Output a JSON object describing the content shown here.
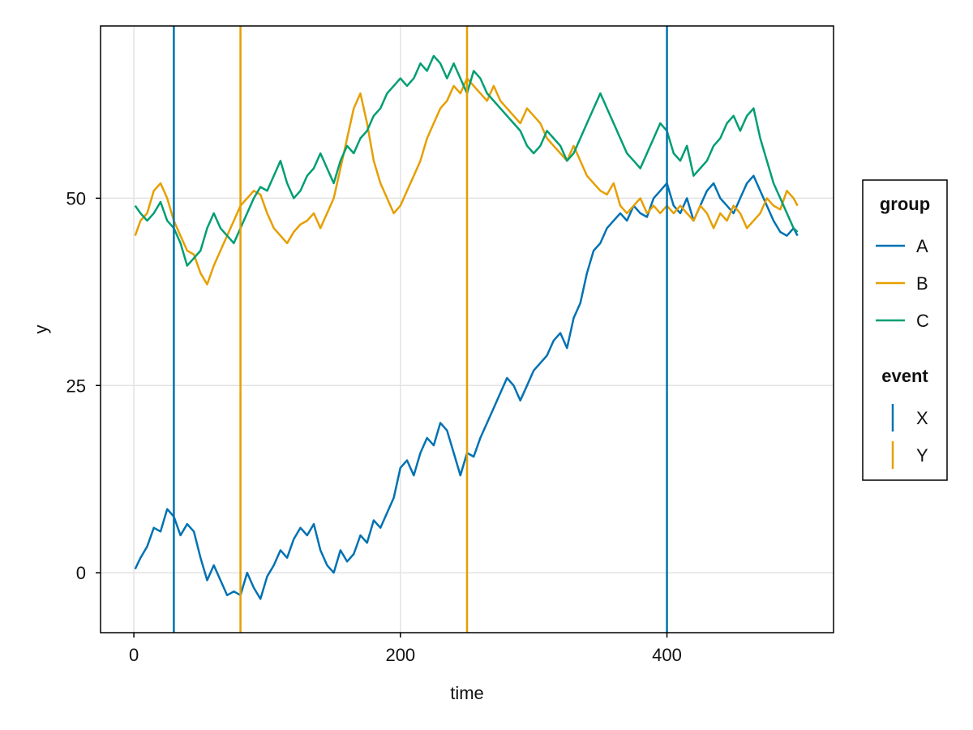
{
  "chart_data": {
    "type": "line",
    "title": "",
    "xlabel": "time",
    "ylabel": "y",
    "xlim": [
      -25,
      525
    ],
    "ylim": [
      -8,
      73
    ],
    "xticks": [
      0,
      200,
      400
    ],
    "yticks": [
      0,
      25,
      50
    ],
    "grid": true,
    "legend_placement": "right",
    "legend": {
      "group_title": "group",
      "event_title": "event"
    },
    "series": [
      {
        "name": "A",
        "color": "#0072B2",
        "points": [
          [
            1,
            0.5
          ],
          [
            5,
            2
          ],
          [
            10,
            3.5
          ],
          [
            15,
            6
          ],
          [
            20,
            5.5
          ],
          [
            25,
            8.5
          ],
          [
            30,
            7.5
          ],
          [
            35,
            5
          ],
          [
            40,
            6.5
          ],
          [
            45,
            5.5
          ],
          [
            50,
            2
          ],
          [
            55,
            -1
          ],
          [
            60,
            1
          ],
          [
            65,
            -1
          ],
          [
            70,
            -3
          ],
          [
            75,
            -2.5
          ],
          [
            80,
            -3
          ],
          [
            85,
            0
          ],
          [
            90,
            -2
          ],
          [
            95,
            -3.5
          ],
          [
            100,
            -0.5
          ],
          [
            105,
            1
          ],
          [
            110,
            3
          ],
          [
            115,
            2
          ],
          [
            120,
            4.5
          ],
          [
            125,
            6
          ],
          [
            130,
            5
          ],
          [
            135,
            6.5
          ],
          [
            140,
            3
          ],
          [
            145,
            1
          ],
          [
            150,
            0
          ],
          [
            155,
            3
          ],
          [
            160,
            1.5
          ],
          [
            165,
            2.5
          ],
          [
            170,
            5
          ],
          [
            175,
            4
          ],
          [
            180,
            7
          ],
          [
            185,
            6
          ],
          [
            190,
            8
          ],
          [
            195,
            10
          ],
          [
            200,
            14
          ],
          [
            205,
            15
          ],
          [
            210,
            13
          ],
          [
            215,
            16
          ],
          [
            220,
            18
          ],
          [
            225,
            17
          ],
          [
            230,
            20
          ],
          [
            235,
            19
          ],
          [
            240,
            16
          ],
          [
            245,
            13
          ],
          [
            250,
            16
          ],
          [
            255,
            15.5
          ],
          [
            260,
            18
          ],
          [
            265,
            20
          ],
          [
            270,
            22
          ],
          [
            275,
            24
          ],
          [
            280,
            26
          ],
          [
            285,
            25
          ],
          [
            290,
            23
          ],
          [
            295,
            25
          ],
          [
            300,
            27
          ],
          [
            305,
            28
          ],
          [
            310,
            29
          ],
          [
            315,
            31
          ],
          [
            320,
            32
          ],
          [
            325,
            30
          ],
          [
            330,
            34
          ],
          [
            335,
            36
          ],
          [
            340,
            40
          ],
          [
            345,
            43
          ],
          [
            350,
            44
          ],
          [
            355,
            46
          ],
          [
            360,
            47
          ],
          [
            365,
            48
          ],
          [
            370,
            47
          ],
          [
            375,
            49
          ],
          [
            380,
            48
          ],
          [
            385,
            47.5
          ],
          [
            390,
            50
          ],
          [
            395,
            51
          ],
          [
            400,
            52
          ],
          [
            405,
            49
          ],
          [
            410,
            48
          ],
          [
            415,
            50
          ],
          [
            420,
            47
          ],
          [
            425,
            49
          ],
          [
            430,
            51
          ],
          [
            435,
            52
          ],
          [
            440,
            50
          ],
          [
            445,
            49
          ],
          [
            450,
            48
          ],
          [
            455,
            50
          ],
          [
            460,
            52
          ],
          [
            465,
            53
          ],
          [
            470,
            51
          ],
          [
            475,
            49
          ],
          [
            480,
            47
          ],
          [
            485,
            45.5
          ],
          [
            490,
            45
          ],
          [
            495,
            46
          ],
          [
            498,
            45
          ]
        ]
      },
      {
        "name": "B",
        "color": "#E69F00",
        "points": [
          [
            1,
            45
          ],
          [
            5,
            47
          ],
          [
            10,
            48
          ],
          [
            15,
            51
          ],
          [
            20,
            52
          ],
          [
            25,
            50
          ],
          [
            30,
            47
          ],
          [
            35,
            45
          ],
          [
            40,
            43
          ],
          [
            45,
            42.5
          ],
          [
            50,
            40
          ],
          [
            55,
            38.5
          ],
          [
            60,
            41
          ],
          [
            65,
            43
          ],
          [
            70,
            45
          ],
          [
            75,
            47
          ],
          [
            80,
            49
          ],
          [
            85,
            50
          ],
          [
            90,
            51
          ],
          [
            95,
            50.5
          ],
          [
            100,
            48
          ],
          [
            105,
            46
          ],
          [
            110,
            45
          ],
          [
            115,
            44
          ],
          [
            120,
            45.5
          ],
          [
            125,
            46.5
          ],
          [
            130,
            47
          ],
          [
            135,
            48
          ],
          [
            140,
            46
          ],
          [
            145,
            48
          ],
          [
            150,
            50
          ],
          [
            155,
            54
          ],
          [
            160,
            58
          ],
          [
            165,
            62
          ],
          [
            170,
            64
          ],
          [
            175,
            60
          ],
          [
            180,
            55
          ],
          [
            185,
            52
          ],
          [
            190,
            50
          ],
          [
            195,
            48
          ],
          [
            200,
            49
          ],
          [
            205,
            51
          ],
          [
            210,
            53
          ],
          [
            215,
            55
          ],
          [
            220,
            58
          ],
          [
            225,
            60
          ],
          [
            230,
            62
          ],
          [
            235,
            63
          ],
          [
            240,
            65
          ],
          [
            245,
            64
          ],
          [
            250,
            66
          ],
          [
            255,
            65
          ],
          [
            260,
            64
          ],
          [
            265,
            63
          ],
          [
            270,
            65
          ],
          [
            275,
            63
          ],
          [
            280,
            62
          ],
          [
            285,
            61
          ],
          [
            290,
            60
          ],
          [
            295,
            62
          ],
          [
            300,
            61
          ],
          [
            305,
            60
          ],
          [
            310,
            58
          ],
          [
            315,
            57
          ],
          [
            320,
            56
          ],
          [
            325,
            55
          ],
          [
            330,
            57
          ],
          [
            335,
            55
          ],
          [
            340,
            53
          ],
          [
            345,
            52
          ],
          [
            350,
            51
          ],
          [
            355,
            50.5
          ],
          [
            360,
            52
          ],
          [
            365,
            49
          ],
          [
            370,
            48
          ],
          [
            375,
            49
          ],
          [
            380,
            50
          ],
          [
            385,
            48
          ],
          [
            390,
            49
          ],
          [
            395,
            48
          ],
          [
            400,
            49
          ],
          [
            405,
            48
          ],
          [
            410,
            49
          ],
          [
            415,
            48
          ],
          [
            420,
            47
          ],
          [
            425,
            49
          ],
          [
            430,
            48
          ],
          [
            435,
            46
          ],
          [
            440,
            48
          ],
          [
            445,
            47
          ],
          [
            450,
            49
          ],
          [
            455,
            48
          ],
          [
            460,
            46
          ],
          [
            465,
            47
          ],
          [
            470,
            48
          ],
          [
            475,
            50
          ],
          [
            480,
            49
          ],
          [
            485,
            48.5
          ],
          [
            490,
            51
          ],
          [
            495,
            50
          ],
          [
            498,
            49
          ]
        ]
      },
      {
        "name": "C",
        "color": "#009E73",
        "points": [
          [
            1,
            49
          ],
          [
            5,
            48
          ],
          [
            10,
            47
          ],
          [
            15,
            48
          ],
          [
            20,
            49.5
          ],
          [
            25,
            47
          ],
          [
            30,
            46
          ],
          [
            35,
            44
          ],
          [
            40,
            41
          ],
          [
            45,
            42
          ],
          [
            50,
            43
          ],
          [
            55,
            46
          ],
          [
            60,
            48
          ],
          [
            65,
            46
          ],
          [
            70,
            45
          ],
          [
            75,
            44
          ],
          [
            80,
            46
          ],
          [
            85,
            48
          ],
          [
            90,
            50
          ],
          [
            95,
            51.5
          ],
          [
            100,
            51
          ],
          [
            105,
            53
          ],
          [
            110,
            55
          ],
          [
            115,
            52
          ],
          [
            120,
            50
          ],
          [
            125,
            51
          ],
          [
            130,
            53
          ],
          [
            135,
            54
          ],
          [
            140,
            56
          ],
          [
            145,
            54
          ],
          [
            150,
            52
          ],
          [
            155,
            55
          ],
          [
            160,
            57
          ],
          [
            165,
            56
          ],
          [
            170,
            58
          ],
          [
            175,
            59
          ],
          [
            180,
            61
          ],
          [
            185,
            62
          ],
          [
            190,
            64
          ],
          [
            195,
            65
          ],
          [
            200,
            66
          ],
          [
            205,
            65
          ],
          [
            210,
            66
          ],
          [
            215,
            68
          ],
          [
            220,
            67
          ],
          [
            225,
            69
          ],
          [
            230,
            68
          ],
          [
            235,
            66
          ],
          [
            240,
            68
          ],
          [
            245,
            66
          ],
          [
            250,
            64
          ],
          [
            255,
            67
          ],
          [
            260,
            66
          ],
          [
            265,
            64
          ],
          [
            270,
            63
          ],
          [
            275,
            62
          ],
          [
            280,
            61
          ],
          [
            285,
            60
          ],
          [
            290,
            59
          ],
          [
            295,
            57
          ],
          [
            300,
            56
          ],
          [
            305,
            57
          ],
          [
            310,
            59
          ],
          [
            315,
            58
          ],
          [
            320,
            57
          ],
          [
            325,
            55
          ],
          [
            330,
            56
          ],
          [
            335,
            58
          ],
          [
            340,
            60
          ],
          [
            345,
            62
          ],
          [
            350,
            64
          ],
          [
            355,
            62
          ],
          [
            360,
            60
          ],
          [
            365,
            58
          ],
          [
            370,
            56
          ],
          [
            375,
            55
          ],
          [
            380,
            54
          ],
          [
            385,
            56
          ],
          [
            390,
            58
          ],
          [
            395,
            60
          ],
          [
            400,
            59
          ],
          [
            405,
            56
          ],
          [
            410,
            55
          ],
          [
            415,
            57
          ],
          [
            420,
            53
          ],
          [
            425,
            54
          ],
          [
            430,
            55
          ],
          [
            435,
            57
          ],
          [
            440,
            58
          ],
          [
            445,
            60
          ],
          [
            450,
            61
          ],
          [
            455,
            59
          ],
          [
            460,
            61
          ],
          [
            465,
            62
          ],
          [
            470,
            58
          ],
          [
            475,
            55
          ],
          [
            480,
            52
          ],
          [
            485,
            50
          ],
          [
            490,
            48
          ],
          [
            495,
            46
          ],
          [
            498,
            45.5
          ]
        ]
      }
    ],
    "events": [
      {
        "name": "X",
        "color": "#0072B2",
        "x": [
          30,
          400
        ]
      },
      {
        "name": "Y",
        "color": "#E69F00",
        "x": [
          80,
          250
        ]
      }
    ]
  }
}
